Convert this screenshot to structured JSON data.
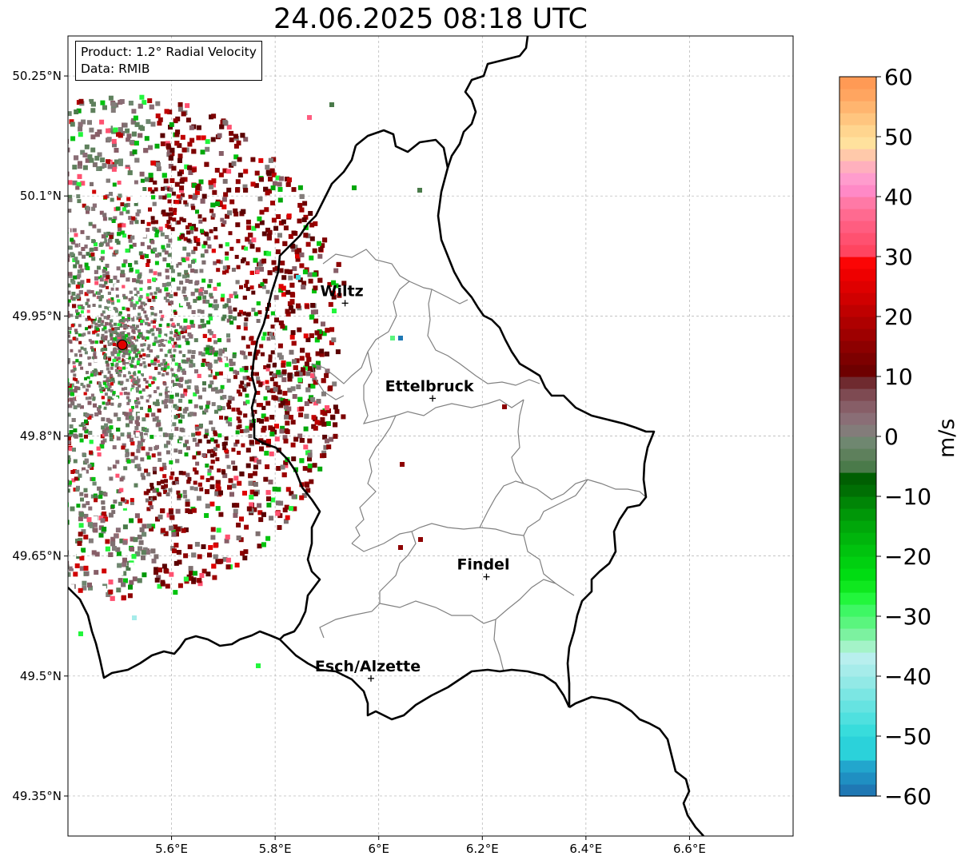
{
  "title": "24.06.2025 08:18 UTC",
  "info": {
    "product": "Product: 1.2° Radial Velocity",
    "data": "Data: RMIB"
  },
  "map": {
    "lon_range": [
      5.4,
      6.8
    ],
    "lat_range": [
      49.3,
      50.3
    ],
    "lon_ticks": [
      {
        "value": 5.6,
        "label": "5.6°E"
      },
      {
        "value": 5.8,
        "label": "5.8°E"
      },
      {
        "value": 6.0,
        "label": "6°E"
      },
      {
        "value": 6.2,
        "label": "6.2°E"
      },
      {
        "value": 6.4,
        "label": "6.4°E"
      },
      {
        "value": 6.6,
        "label": "6.6°E"
      }
    ],
    "lat_ticks": [
      {
        "value": 50.25,
        "label": "50.25°N"
      },
      {
        "value": 50.1,
        "label": "50.1°N"
      },
      {
        "value": 49.95,
        "label": "49.95°N"
      },
      {
        "value": 49.8,
        "label": "49.8°N"
      },
      {
        "value": 49.65,
        "label": "49.65°N"
      },
      {
        "value": 49.5,
        "label": "49.5°N"
      },
      {
        "value": 49.35,
        "label": "49.35°N"
      }
    ],
    "radar_site": {
      "lon": 5.505,
      "lat": 49.914
    },
    "cities": [
      {
        "name": "Wiltz",
        "lon": 5.935,
        "lat": 49.966
      },
      {
        "name": "Ettelbruck",
        "lon": 6.104,
        "lat": 49.847
      },
      {
        "name": "Findel",
        "lon": 6.208,
        "lat": 49.624
      },
      {
        "name": "Esch/Alzette",
        "lon": 5.985,
        "lat": 49.497
      }
    ],
    "grid": true
  },
  "colorbar": {
    "unit": "m/s",
    "range": [
      -60,
      60
    ],
    "ticks": [
      {
        "value": 60,
        "label": "60"
      },
      {
        "value": 50,
        "label": "50"
      },
      {
        "value": 40,
        "label": "40"
      },
      {
        "value": 30,
        "label": "30"
      },
      {
        "value": 20,
        "label": "20"
      },
      {
        "value": 10,
        "label": "10"
      },
      {
        "value": 0,
        "label": "0"
      },
      {
        "value": -10,
        "label": "−10"
      },
      {
        "value": -20,
        "label": "−20"
      },
      {
        "value": -30,
        "label": "−30"
      },
      {
        "value": -40,
        "label": "−40"
      },
      {
        "value": -50,
        "label": "−50"
      },
      {
        "value": -60,
        "label": "−60"
      }
    ],
    "bands": [
      {
        "from": -60,
        "to": -58,
        "color": "#1f78b4"
      },
      {
        "from": -58,
        "to": -56,
        "color": "#1f8fc2"
      },
      {
        "from": -56,
        "to": -54,
        "color": "#22a6cd"
      },
      {
        "from": -54,
        "to": -50,
        "color": "#2bd2da"
      },
      {
        "from": -50,
        "to": -48,
        "color": "#38dcdc"
      },
      {
        "from": -48,
        "to": -46,
        "color": "#4fe0df"
      },
      {
        "from": -46,
        "to": -44,
        "color": "#66e3e1"
      },
      {
        "from": -44,
        "to": -42,
        "color": "#7be6e3"
      },
      {
        "from": -42,
        "to": -40,
        "color": "#92e9e6"
      },
      {
        "from": -40,
        "to": -38,
        "color": "#a6ecea"
      },
      {
        "from": -38,
        "to": -36,
        "color": "#b8efee"
      },
      {
        "from": -36,
        "to": -34,
        "color": "#a4f3c8"
      },
      {
        "from": -34,
        "to": -32,
        "color": "#7cf2a0"
      },
      {
        "from": -32,
        "to": -30,
        "color": "#5af57e"
      },
      {
        "from": -30,
        "to": -28,
        "color": "#3ef764"
      },
      {
        "from": -28,
        "to": -26,
        "color": "#22f63c"
      },
      {
        "from": -26,
        "to": -24,
        "color": "#0fe81f"
      },
      {
        "from": -24,
        "to": -22,
        "color": "#00dc12"
      },
      {
        "from": -22,
        "to": -20,
        "color": "#00d010"
      },
      {
        "from": -20,
        "to": -18,
        "color": "#00c30e"
      },
      {
        "from": -18,
        "to": -16,
        "color": "#00b50c"
      },
      {
        "from": -16,
        "to": -14,
        "color": "#00a70a"
      },
      {
        "from": -14,
        "to": -12,
        "color": "#009708"
      },
      {
        "from": -12,
        "to": -10,
        "color": "#008506"
      },
      {
        "from": -10,
        "to": -8,
        "color": "#006f04"
      },
      {
        "from": -8,
        "to": -6,
        "color": "#005f02"
      },
      {
        "from": -6,
        "to": -4,
        "color": "#4a7a4a"
      },
      {
        "from": -4,
        "to": -2,
        "color": "#5e805c"
      },
      {
        "from": -2,
        "to": 0,
        "color": "#6f8770"
      },
      {
        "from": 0,
        "to": 2,
        "color": "#837c7a"
      },
      {
        "from": 2,
        "to": 4,
        "color": "#8a6e76"
      },
      {
        "from": 4,
        "to": 6,
        "color": "#875e67"
      },
      {
        "from": 6,
        "to": 8,
        "color": "#7e4a52"
      },
      {
        "from": 8,
        "to": 10,
        "color": "#6f2a2f"
      },
      {
        "from": 10,
        "to": 12,
        "color": "#6e0000"
      },
      {
        "from": 12,
        "to": 14,
        "color": "#7d0000"
      },
      {
        "from": 14,
        "to": 16,
        "color": "#8d0000"
      },
      {
        "from": 16,
        "to": 18,
        "color": "#9e0000"
      },
      {
        "from": 18,
        "to": 20,
        "color": "#ae0000"
      },
      {
        "from": 20,
        "to": 22,
        "color": "#bf0000"
      },
      {
        "from": 22,
        "to": 24,
        "color": "#d00000"
      },
      {
        "from": 24,
        "to": 26,
        "color": "#df0000"
      },
      {
        "from": 26,
        "to": 28,
        "color": "#ee0000"
      },
      {
        "from": 28,
        "to": 30,
        "color": "#fb0505"
      },
      {
        "from": 30,
        "to": 32,
        "color": "#ff4560"
      },
      {
        "from": 32,
        "to": 34,
        "color": "#ff5170"
      },
      {
        "from": 34,
        "to": 36,
        "color": "#ff5d80"
      },
      {
        "from": 36,
        "to": 38,
        "color": "#ff6a90"
      },
      {
        "from": 38,
        "to": 40,
        "color": "#ff79a6"
      },
      {
        "from": 40,
        "to": 42,
        "color": "#ff89c6"
      },
      {
        "from": 42,
        "to": 44,
        "color": "#ff9ccd"
      },
      {
        "from": 44,
        "to": 46,
        "color": "#ffb0bd"
      },
      {
        "from": 46,
        "to": 48,
        "color": "#ffc9aa"
      },
      {
        "from": 48,
        "to": 50,
        "color": "#ffe19d"
      },
      {
        "from": 50,
        "to": 52,
        "color": "#ffd58f"
      },
      {
        "from": 52,
        "to": 54,
        "color": "#ffc57f"
      },
      {
        "from": 54,
        "to": 56,
        "color": "#ffb56f"
      },
      {
        "from": 56,
        "to": 58,
        "color": "#ffa560"
      },
      {
        "from": 58,
        "to": 60,
        "color": "#ff9a55"
      }
    ]
  },
  "colors": {
    "border": "#000000",
    "canton": "#808080",
    "grid": "#b0b0b0",
    "radar_marker": "#e00000"
  }
}
